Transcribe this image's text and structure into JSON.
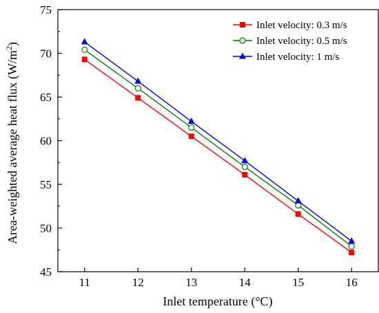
{
  "chart_data": {
    "type": "line",
    "xlabel_main": "Inlet temperature (",
    "xlabel_unit": "°C",
    "xlabel_close": ")",
    "ylabel_main": "Area-weighted average heat flux (W/m",
    "ylabel_sup": "2",
    "ylabel_close": ")",
    "x": [
      11,
      12,
      13,
      14,
      15,
      16
    ],
    "xlim": [
      10.5,
      16.5
    ],
    "ylim": [
      45,
      75
    ],
    "xticks": [
      11,
      12,
      13,
      14,
      15,
      16
    ],
    "yticks": [
      45,
      50,
      55,
      60,
      65,
      70,
      75
    ],
    "grid": false,
    "legend_position": "top-right",
    "series": [
      {
        "name": "Inlet velocity: 0.3 m/s",
        "values": [
          69.3,
          64.9,
          60.5,
          56.1,
          51.6,
          47.2
        ],
        "color": "#ff0000",
        "marker": "filled-square"
      },
      {
        "name": "Inlet velocity: 0.5 m/s",
        "values": [
          70.4,
          66.0,
          61.5,
          57.0,
          52.6,
          47.9
        ],
        "color": "#008000",
        "marker": "open-circle"
      },
      {
        "name": "Inlet velocity: 1 m/s",
        "values": [
          71.3,
          66.8,
          62.2,
          57.7,
          53.1,
          48.5
        ],
        "color": "#0000ff",
        "marker": "filled-triangle"
      }
    ]
  }
}
